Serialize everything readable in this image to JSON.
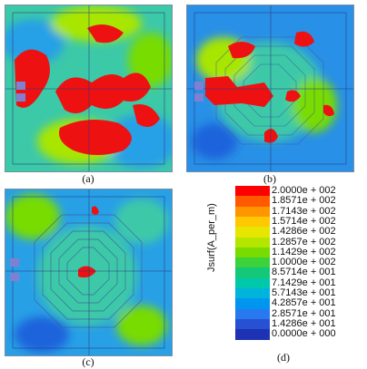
{
  "captions": {
    "a": "(a)",
    "b": "(b)",
    "c": "(c)",
    "d": "(d)"
  },
  "legend": {
    "title": "Jsurf(A_per_m)",
    "entries": [
      {
        "label": "2.0000e + 002",
        "color": "#ff0000"
      },
      {
        "label": "1.8571e + 002",
        "color": "#ff5a00"
      },
      {
        "label": "1.7143e + 002",
        "color": "#ff9600"
      },
      {
        "label": "1.5714e + 002",
        "color": "#ffc800"
      },
      {
        "label": "1.4286e + 002",
        "color": "#e6e600"
      },
      {
        "label": "1.2857e + 002",
        "color": "#b4e600"
      },
      {
        "label": "1.1429e + 002",
        "color": "#78dc00"
      },
      {
        "label": "1.0000e + 002",
        "color": "#3cd23c"
      },
      {
        "label": "8.5714e + 001",
        "color": "#14c87a"
      },
      {
        "label": "7.1429e + 001",
        "color": "#00c8aa"
      },
      {
        "label": "5.7143e + 001",
        "color": "#00b4dc"
      },
      {
        "label": "4.2857e + 001",
        "color": "#0096f0"
      },
      {
        "label": "2.8571e + 001",
        "color": "#2878f0"
      },
      {
        "label": "1.4286e + 001",
        "color": "#2850d2"
      },
      {
        "label": "0.0000e + 000",
        "color": "#1e32b4"
      }
    ]
  }
}
